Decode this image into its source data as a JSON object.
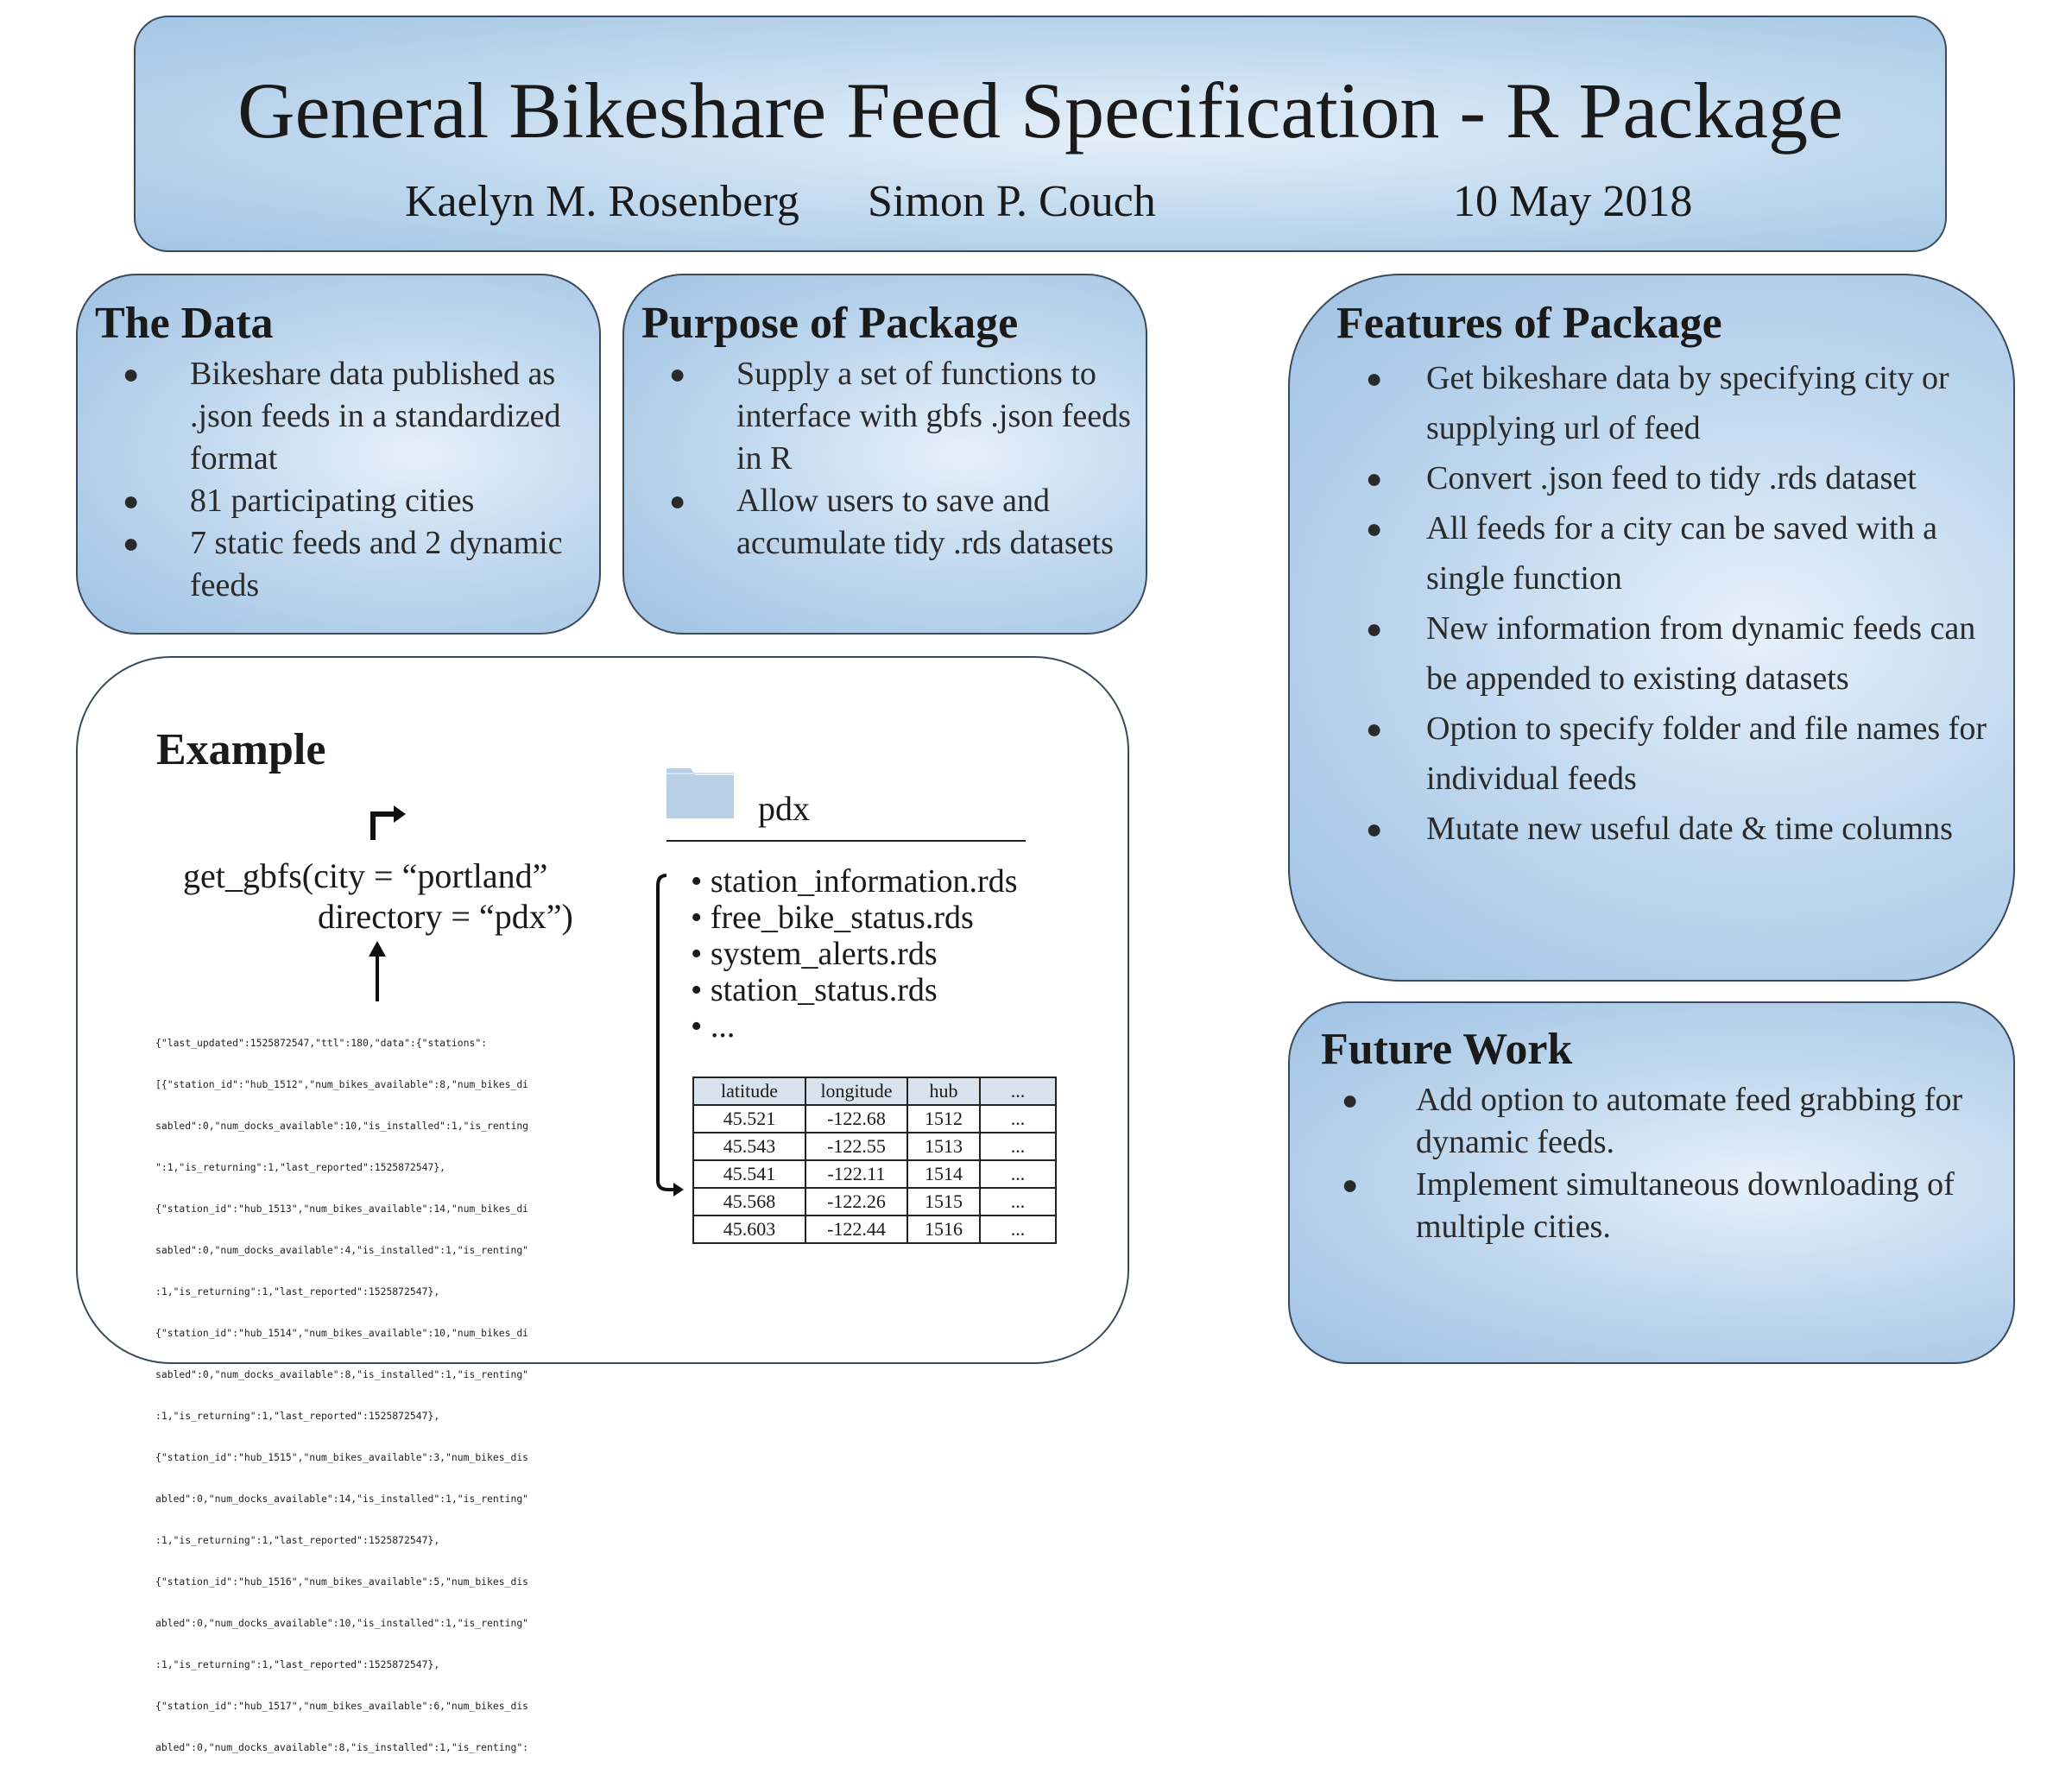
{
  "header": {
    "title": "General Bikeshare Feed Specification - R Package",
    "authors": [
      "Kaelyn M. Rosenberg",
      "Simon P. Couch"
    ],
    "date": "10 May 2018"
  },
  "data_panel": {
    "title": "The Data",
    "items": [
      "Bikeshare data  published as .json feeds in a  standardized format",
      "81 participating cities",
      "7 static feeds and 2 dynamic feeds"
    ]
  },
  "purpose_panel": {
    "title": "Purpose of Package",
    "items": [
      "Supply a set of functions to interface with gbfs .json feeds in R",
      "Allow users to save and accumulate tidy .rds datasets"
    ]
  },
  "features_panel": {
    "title": "Features of Package",
    "items": [
      "Get bikeshare data by specifying city or supplying url of feed",
      "Convert .json feed to tidy .rds dataset",
      "All feeds for a city can be saved with a single function",
      "New information from dynamic feeds can be appended to existing datasets",
      "Option to specify folder and file names for individual feeds",
      "Mutate new useful date & time columns"
    ]
  },
  "future_panel": {
    "title": "Future Work",
    "items": [
      "Add option to automate feed grabbing for dynamic feeds.",
      "Implement simultaneous downloading of multiple cities."
    ]
  },
  "example": {
    "title": "Example",
    "code_line1": "get_gbfs(city = “portland”",
    "code_line2": "directory = “pdx”)",
    "folder_name": "pdx",
    "files": [
      "station_information.rds",
      "free_bike_status.rds",
      "system_alerts.rds",
      "station_status.rds",
      "..."
    ],
    "json_lines": [
      "{\"last_updated\":1525872547,\"ttl\":180,\"data\":{\"stations\":",
      "[{\"station_id\":\"hub_1512\",\"num_bikes_available\":8,\"num_bikes_di",
      "sabled\":0,\"num_docks_available\":10,\"is_installed\":1,\"is_renting",
      "\":1,\"is_returning\":1,\"last_reported\":1525872547},",
      "{\"station_id\":\"hub_1513\",\"num_bikes_available\":14,\"num_bikes_di",
      "sabled\":0,\"num_docks_available\":4,\"is_installed\":1,\"is_renting\"",
      ":1,\"is_returning\":1,\"last_reported\":1525872547},",
      "{\"station_id\":\"hub_1514\",\"num_bikes_available\":10,\"num_bikes_di",
      "sabled\":0,\"num_docks_available\":8,\"is_installed\":1,\"is_renting\"",
      ":1,\"is_returning\":1,\"last_reported\":1525872547},",
      "{\"station_id\":\"hub_1515\",\"num_bikes_available\":3,\"num_bikes_dis",
      "abled\":0,\"num_docks_available\":14,\"is_installed\":1,\"is_renting\"",
      ":1,\"is_returning\":1,\"last_reported\":1525872547},",
      "{\"station_id\":\"hub_1516\",\"num_bikes_available\":5,\"num_bikes_dis",
      "abled\":0,\"num_docks_available\":10,\"is_installed\":1,\"is_renting\"",
      ":1,\"is_returning\":1,\"last_reported\":1525872547},",
      "{\"station_id\":\"hub_1517\",\"num_bikes_available\":6,\"num_bikes_dis",
      "abled\":0,\"num_docks_available\":8,\"is_installed\":1,\"is_renting\":"
    ],
    "table": {
      "headers": [
        "latitude",
        "longitude",
        "hub",
        "..."
      ],
      "rows": [
        [
          "45.521",
          "-122.68",
          "1512",
          "..."
        ],
        [
          "45.543",
          "-122.55",
          "1513",
          "..."
        ],
        [
          "45.541",
          "-122.11",
          "1514",
          "..."
        ],
        [
          "45.568",
          "-122.26",
          "1515",
          "..."
        ],
        [
          "45.603",
          "-122.44",
          "1516",
          "..."
        ]
      ]
    }
  },
  "colors": {
    "panel_light": "#e4eff9",
    "panel_mid": "#c2d9ef",
    "panel_dark": "#9fc2e3",
    "border": "#3a4a5c",
    "folder": "#b9cfe7",
    "table_header": "#d8e3ee"
  },
  "icons": [
    "folder-icon",
    "arrow-up-icon",
    "arrow-turn-icon",
    "bracket-arrow-icon"
  ]
}
